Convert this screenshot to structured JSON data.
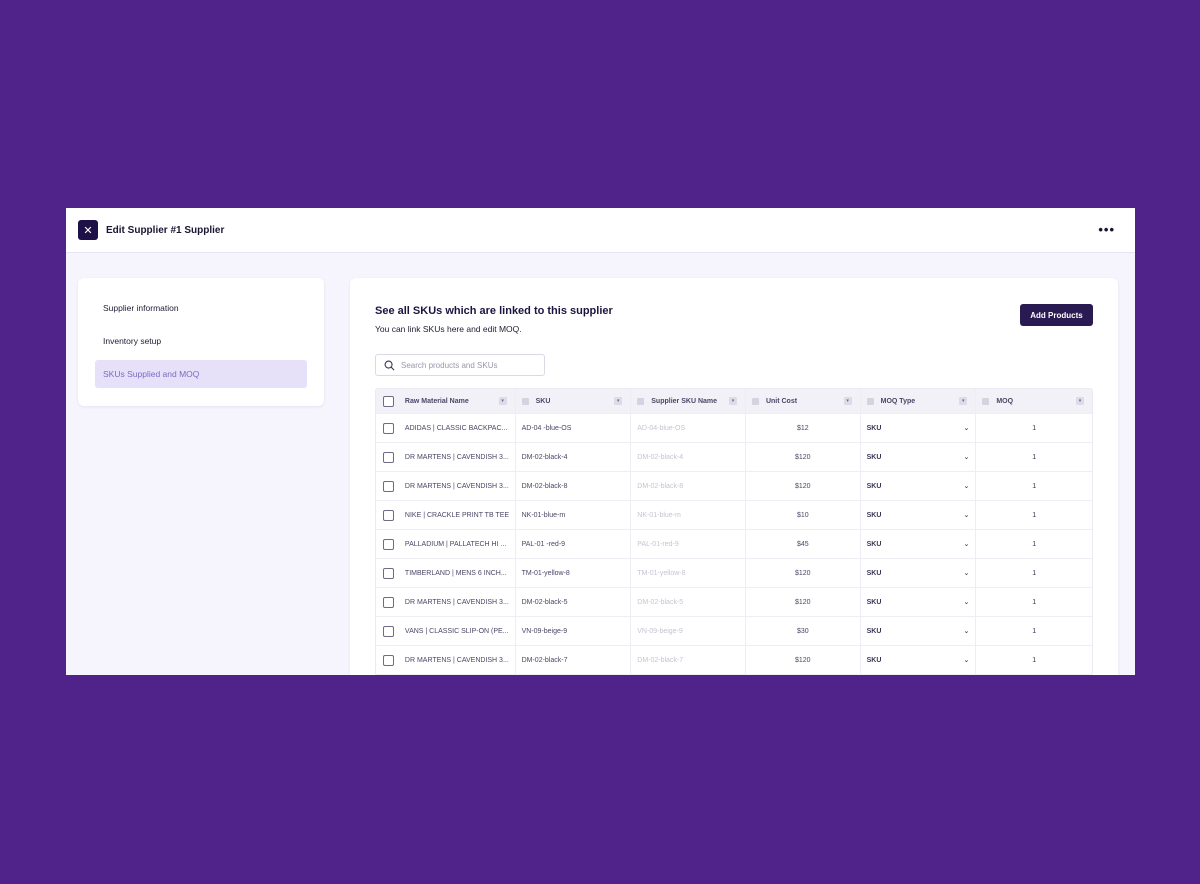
{
  "header": {
    "close_icon": "✕",
    "title": "Edit Supplier #1 Supplier",
    "more_icon": "•••"
  },
  "sidebar": {
    "items": [
      {
        "label": "Supplier information",
        "active": false
      },
      {
        "label": "Inventory setup",
        "active": false
      },
      {
        "label": "SKUs Supplied and MOQ",
        "active": true
      }
    ]
  },
  "main": {
    "title": "See all SKUs which are linked to this supplier",
    "subtitle": "You can link SKUs here and edit MOQ.",
    "add_button": "Add Products",
    "search_placeholder": "Search products and SKUs"
  },
  "table": {
    "headers": {
      "raw_material": "Raw Material Name",
      "sku": "SKU",
      "supplier_sku": "Supplier SKU Name",
      "unit_cost": "Unit Cost",
      "moq_type": "MOQ Type",
      "moq": "MOQ"
    },
    "rows": [
      {
        "name": "ADIDAS | CLASSIC BACKPAC...",
        "sku": "AD-04 -blue-OS",
        "supplier_sku": "AD-04-blue-OS",
        "cost": "$12",
        "moq_type": "SKU",
        "moq": "1"
      },
      {
        "name": "DR MARTENS | CAVENDISH 3...",
        "sku": "DM-02-black-4",
        "supplier_sku": "DM-02-black-4",
        "cost": "$120",
        "moq_type": "SKU",
        "moq": "1"
      },
      {
        "name": "DR MARTENS | CAVENDISH 3...",
        "sku": "DM-02-black-8",
        "supplier_sku": "DM-02-black-8",
        "cost": "$120",
        "moq_type": "SKU",
        "moq": "1"
      },
      {
        "name": "NIKE | CRACKLE PRINT TB TEE",
        "sku": "NK-01-blue-m",
        "supplier_sku": "NK-01-blue-m",
        "cost": "$10",
        "moq_type": "SKU",
        "moq": "1"
      },
      {
        "name": "PALLADIUM | PALLATECH HI ...",
        "sku": "PAL-01 -red-9",
        "supplier_sku": "PAL-01-red-9",
        "cost": "$45",
        "moq_type": "SKU",
        "moq": "1"
      },
      {
        "name": "TIMBERLAND | MENS 6 INCH...",
        "sku": "TM-01-yellow-8",
        "supplier_sku": "TM-01-yellow-8",
        "cost": "$120",
        "moq_type": "SKU",
        "moq": "1"
      },
      {
        "name": "DR MARTENS | CAVENDISH 3...",
        "sku": "DM-02-black-5",
        "supplier_sku": "DM-02-black-5",
        "cost": "$120",
        "moq_type": "SKU",
        "moq": "1"
      },
      {
        "name": "VANS | CLASSIC SLIP-ON (PE...",
        "sku": "VN-09-beige-9",
        "supplier_sku": "VN-09-beige-9",
        "cost": "$30",
        "moq_type": "SKU",
        "moq": "1"
      },
      {
        "name": "DR MARTENS | CAVENDISH 3...",
        "sku": "DM-02-black-7",
        "supplier_sku": "DM-02-black-7",
        "cost": "$120",
        "moq_type": "SKU",
        "moq": "1"
      }
    ]
  },
  "colors": {
    "background": "#4f238a",
    "primary_button": "#2a1a52",
    "active_nav": "#e6e0f8"
  }
}
